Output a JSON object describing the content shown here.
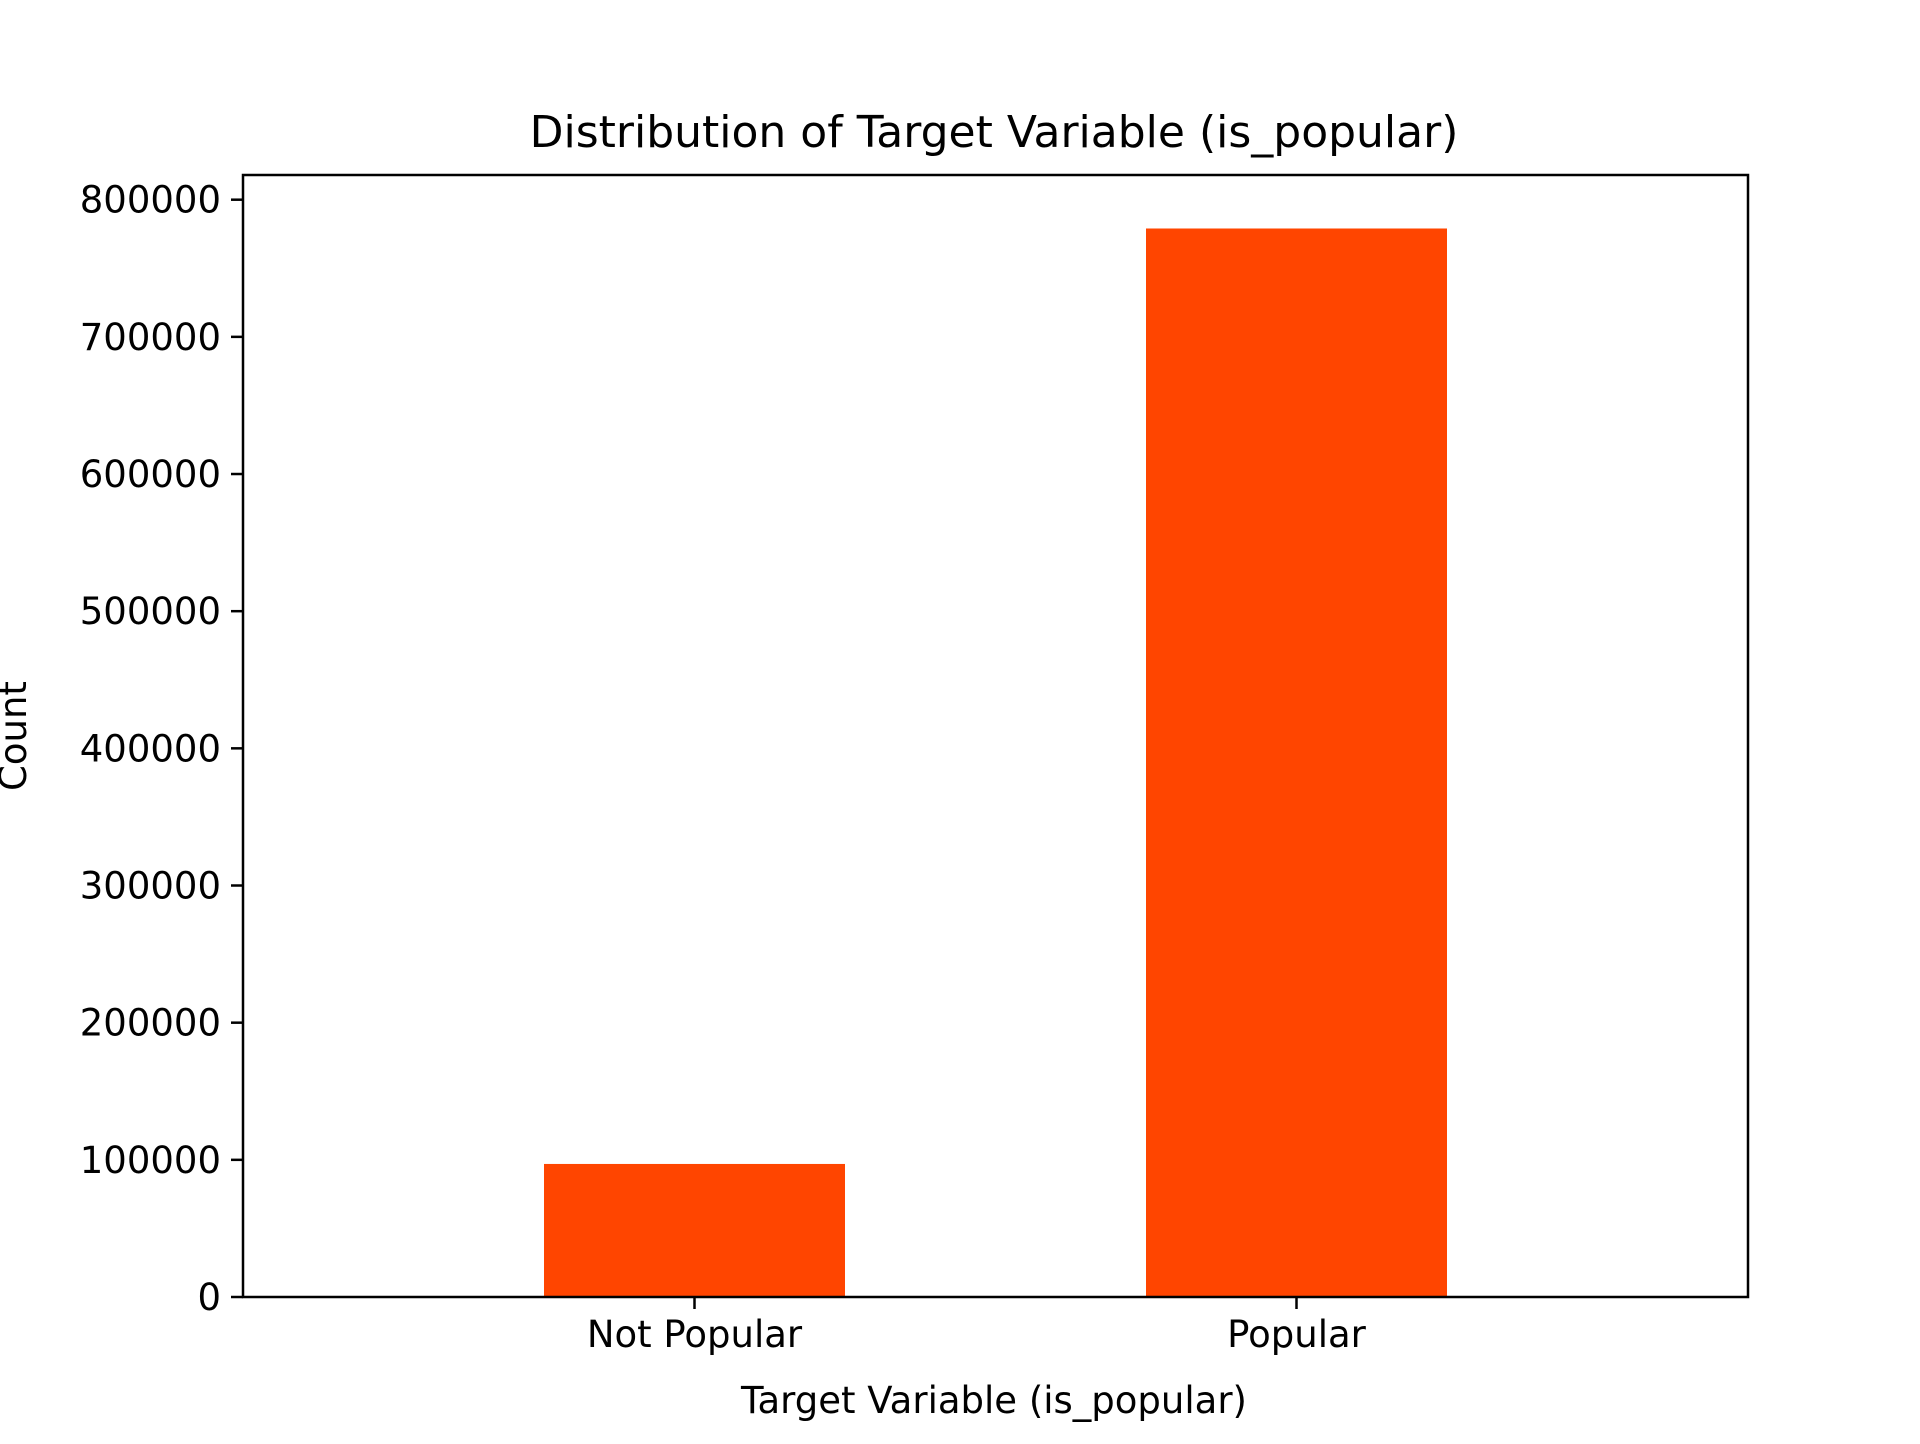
{
  "chart_data": {
    "type": "bar",
    "title": "Distribution of Target Variable (is_popular)",
    "xlabel": "Target Variable (is_popular)",
    "ylabel": "Count",
    "categories": [
      "Not Popular",
      "Popular"
    ],
    "values": [
      97000,
      779000
    ],
    "ylim": [
      0,
      818000
    ],
    "yticks": [
      0,
      100000,
      200000,
      300000,
      400000,
      500000,
      600000,
      700000,
      800000
    ],
    "ytick_labels": [
      "0",
      "100000",
      "200000",
      "300000",
      "400000",
      "500000",
      "600000",
      "700000",
      "800000"
    ],
    "bar_color": "#ff4500",
    "grid": false,
    "legend": "none"
  }
}
